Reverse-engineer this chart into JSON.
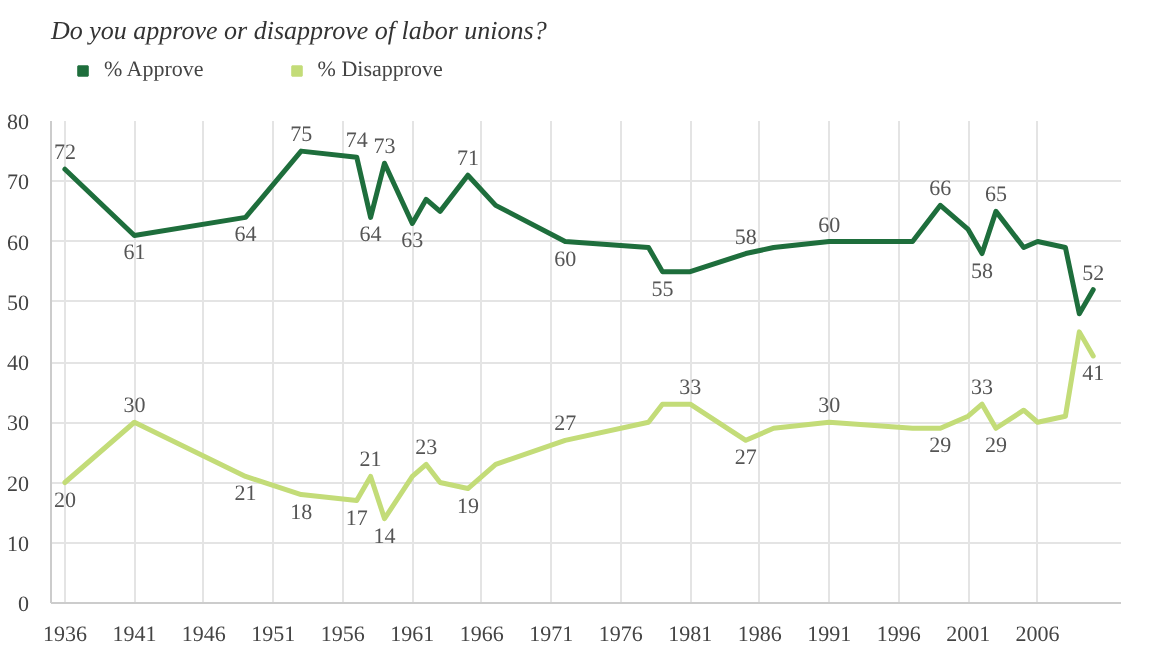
{
  "chart_data": {
    "type": "line",
    "title": "Do you approve or disapprove of labor unions?",
    "x": [
      1936,
      1941,
      1949,
      1953,
      1957,
      1958,
      1959,
      1961,
      1962,
      1963,
      1965,
      1967,
      1972,
      1978,
      1979,
      1981,
      1985,
      1987,
      1991,
      1997,
      1999,
      2001,
      2002,
      2003,
      2005,
      2006,
      2008,
      2009,
      2010
    ],
    "series": [
      {
        "name": "% Approve",
        "color": "#1e6e3c",
        "values": [
          72,
          61,
          64,
          75,
          74,
          64,
          73,
          63,
          67,
          65,
          71,
          66,
          60,
          59,
          55,
          55,
          58,
          59,
          60,
          60,
          66,
          62,
          58,
          65,
          59,
          60,
          59,
          48,
          52
        ],
        "value_labels": [
          "72",
          "61",
          "64",
          "75",
          "74",
          "64",
          "73",
          "63",
          null,
          null,
          "71",
          null,
          "60",
          null,
          "55",
          null,
          "58",
          null,
          "60",
          null,
          "66",
          null,
          "58",
          "65",
          null,
          null,
          null,
          null,
          "52"
        ]
      },
      {
        "name": "% Disapprove",
        "color": "#c3dc78",
        "values": [
          20,
          30,
          21,
          18,
          17,
          21,
          14,
          21,
          23,
          20,
          19,
          23,
          27,
          30,
          33,
          33,
          27,
          29,
          30,
          29,
          29,
          31,
          33,
          29,
          32,
          30,
          31,
          45,
          41
        ],
        "value_labels": [
          "20",
          "30",
          "21",
          "18",
          "17",
          "21",
          "14",
          null,
          "23",
          null,
          "19",
          null,
          "27",
          null,
          null,
          "33",
          "27",
          null,
          "30",
          null,
          "29",
          null,
          "33",
          "29",
          null,
          null,
          null,
          null,
          "41"
        ]
      }
    ],
    "xlim": [
      1935,
      2012
    ],
    "xticks": [
      1936,
      1941,
      1946,
      1951,
      1956,
      1961,
      1966,
      1971,
      1976,
      1981,
      1986,
      1991,
      1996,
      2001,
      2006
    ],
    "ylim": [
      0,
      80
    ],
    "yticks": [
      0,
      10,
      20,
      30,
      40,
      50,
      60,
      70,
      80
    ],
    "grid": true,
    "legend": "top left",
    "marker": "none",
    "line_style": "solid"
  }
}
